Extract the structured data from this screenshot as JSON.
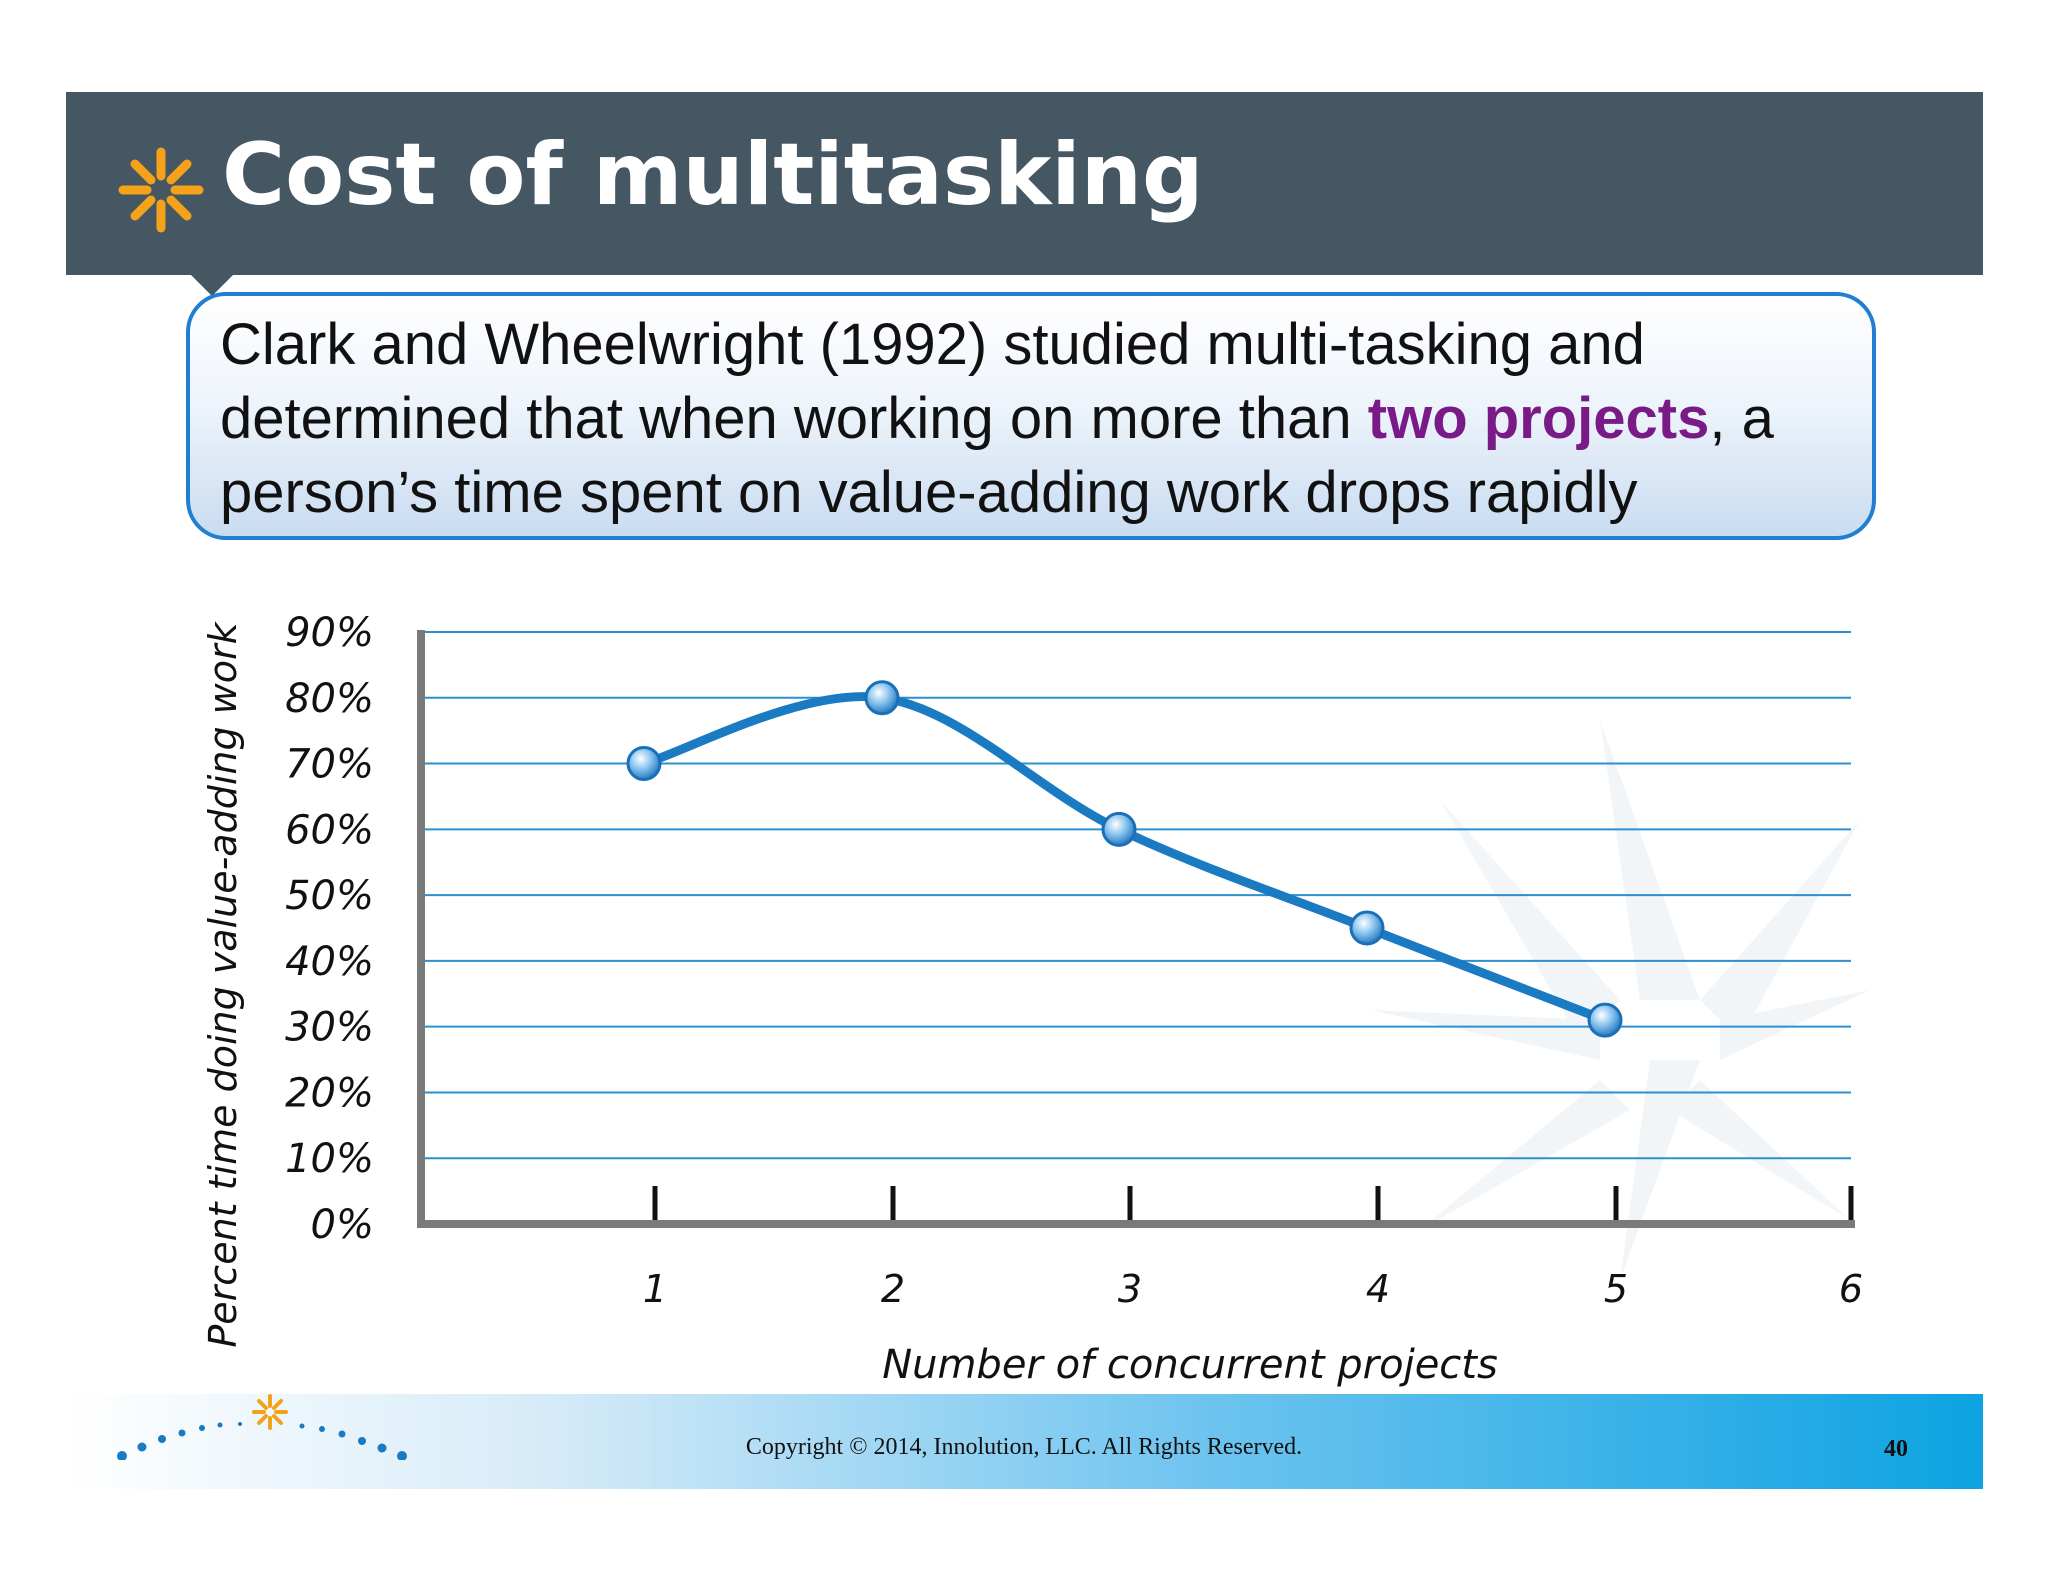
{
  "slide": {
    "title": "Cost of multitasking",
    "callout": {
      "part1": "Clark and Wheelwright (1992) studied multi-tasking and determined that when working on more than ",
      "highlight": "two projects",
      "part2": ", a person’s time spent on value-adding work drops rapidly"
    },
    "copyright": "Copyright © 2014, Innolution, LLC. All Rights Reserved.",
    "page_number": "40"
  },
  "colors": {
    "header": "#465764",
    "accent_orange": "#f5a21b",
    "highlight_purple": "#7a1a86",
    "line_blue": "#1a7ac2",
    "grid_blue": "#2b8fd0",
    "footer_blue": "#0da3e2"
  },
  "icons": [
    "starburst-icon",
    "dotted-arc-logo-icon"
  ],
  "chart_data": {
    "type": "line",
    "title": "",
    "xlabel": "Number of concurrent projects",
    "ylabel": "Percent time doing value-adding work",
    "categories": [
      "1",
      "2",
      "3",
      "4",
      "5",
      "6"
    ],
    "x": [
      1,
      2,
      3,
      4,
      5
    ],
    "values": [
      70,
      80,
      60,
      45,
      31
    ],
    "y_ticks": [
      "0%",
      "10%",
      "20%",
      "30%",
      "40%",
      "50%",
      "60%",
      "70%",
      "80%",
      "90%"
    ],
    "xlim": [
      0,
      6
    ],
    "ylim": [
      0,
      90
    ],
    "grid": true,
    "legend": "none"
  }
}
